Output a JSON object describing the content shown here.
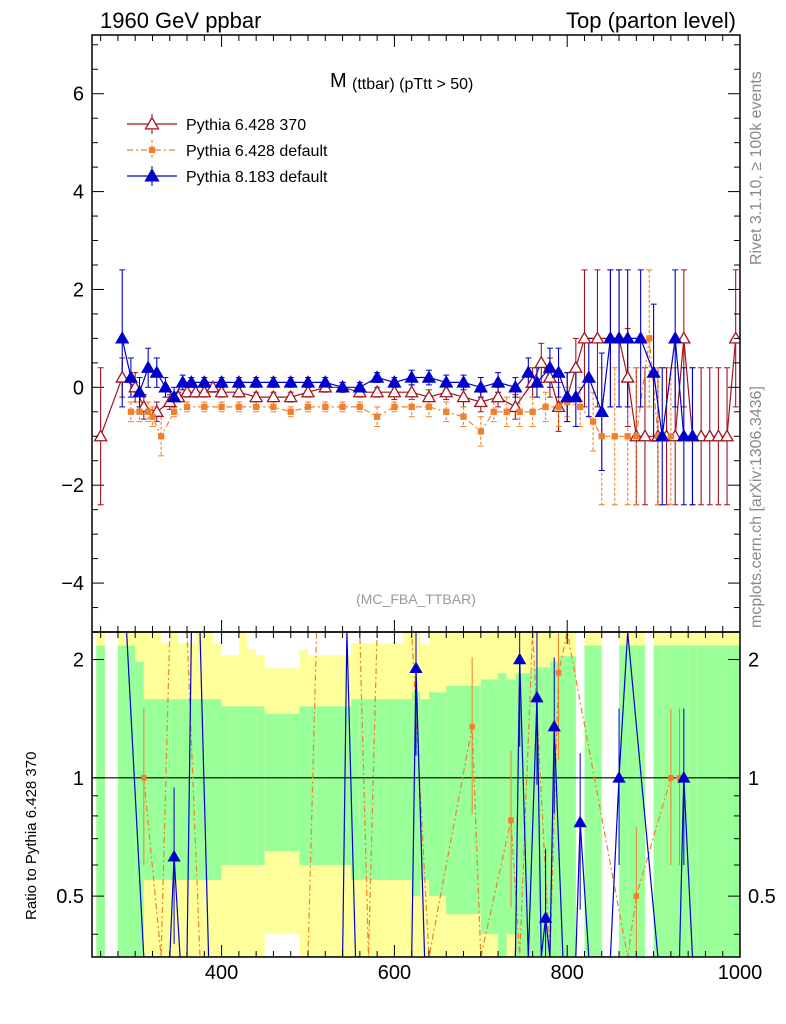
{
  "header": {
    "left": "1960 GeV ppbar",
    "right": "Top (parton level)"
  },
  "side_texts": {
    "rivet": "Rivet 3.1.10, ≥ 100k events",
    "mcplots": "mcplots.cern.ch [arXiv:1306.3436]"
  },
  "chart_data": {
    "type": "line",
    "title_main": "M",
    "title_sub": "(ttbar) (pTtt > 50)",
    "analysis_tag": "(MC_FBA_TTBAR)",
    "xlim": [
      250,
      1000
    ],
    "main_ylim": [
      -5,
      7.2
    ],
    "ratio_ylim": [
      0.35,
      2.35
    ],
    "ratio_ylabel": "Ratio to Pythia 6.428 370",
    "x_ticks": [
      400,
      600,
      800,
      1000
    ],
    "main_y_ticks": [
      -4,
      -2,
      0,
      2,
      4,
      6
    ],
    "main_y_tick_labels": [
      "−4",
      "−2",
      "0",
      "2",
      "4",
      "6"
    ],
    "ratio_y_ticks": [
      0.5,
      1,
      2
    ],
    "ratio_y_tick_labels": [
      "0.5",
      "1",
      "2"
    ],
    "legend": [
      "Pythia 6.428 370",
      "Pythia 6.428 default",
      "Pythia 8.183 default"
    ],
    "series": [
      {
        "name": "Pythia 6.428 370",
        "color": "#a0141e",
        "marker": "open-triangle",
        "dash": "",
        "x": [
          260,
          285,
          300,
          310,
          325,
          340,
          350,
          360,
          370,
          380,
          390,
          400,
          420,
          440,
          460,
          480,
          500,
          520,
          540,
          560,
          580,
          600,
          620,
          640,
          660,
          680,
          700,
          720,
          740,
          760,
          770,
          780,
          790,
          800,
          810,
          820,
          835,
          850,
          860,
          870,
          880,
          890,
          905,
          915,
          925,
          935,
          945,
          955,
          965,
          975,
          985,
          995
        ],
        "y": [
          -1.0,
          0.2,
          0.0,
          -0.4,
          -0.5,
          -0.3,
          -0.2,
          -0.1,
          -0.1,
          -0.1,
          0.0,
          -0.1,
          -0.1,
          -0.2,
          -0.2,
          -0.2,
          -0.1,
          0.0,
          0.0,
          -0.1,
          -0.1,
          -0.1,
          -0.1,
          -0.2,
          -0.1,
          -0.2,
          -0.3,
          -0.2,
          -0.4,
          0.1,
          0.5,
          0.2,
          -0.4,
          -0.2,
          0.4,
          1.0,
          1.0,
          1.0,
          1.0,
          0.2,
          -1.0,
          -1.0,
          -1.0,
          -1.0,
          -1.0,
          1.0,
          -1.0,
          -1.0,
          -1.0,
          -1.0,
          -1.0,
          1.0
        ],
        "err": [
          1.4,
          0.4,
          0.3,
          0.25,
          0.2,
          0.15,
          0.1,
          0.1,
          0.1,
          0.1,
          0.1,
          0.1,
          0.1,
          0.1,
          0.1,
          0.1,
          0.1,
          0.1,
          0.1,
          0.1,
          0.1,
          0.15,
          0.15,
          0.15,
          0.15,
          0.2,
          0.2,
          0.2,
          0.25,
          0.3,
          0.4,
          0.4,
          0.5,
          0.5,
          0.6,
          1.4,
          1.4,
          1.4,
          1.4,
          1.0,
          1.4,
          1.4,
          1.4,
          1.4,
          1.4,
          1.4,
          1.4,
          1.4,
          1.4,
          1.4,
          1.4,
          1.4
        ]
      },
      {
        "name": "Pythia 6.428 default",
        "color": "#f47f2a",
        "marker": "filled-square",
        "dash": "6,3,2,3",
        "x": [
          295,
          305,
          315,
          320,
          330,
          345,
          360,
          380,
          400,
          420,
          440,
          460,
          480,
          500,
          520,
          540,
          560,
          580,
          600,
          620,
          640,
          660,
          680,
          700,
          715,
          730,
          745,
          760,
          775,
          790,
          800,
          815,
          830,
          840,
          855,
          870,
          880,
          895,
          905,
          920
        ],
        "y": [
          -0.5,
          -0.5,
          -0.5,
          -0.6,
          -1.0,
          -0.5,
          -0.4,
          -0.4,
          -0.4,
          -0.4,
          -0.4,
          -0.4,
          -0.5,
          -0.4,
          -0.4,
          -0.4,
          -0.4,
          -0.6,
          -0.4,
          -0.4,
          -0.4,
          -0.5,
          -0.6,
          -0.9,
          -0.5,
          -0.5,
          -0.5,
          -0.5,
          -0.4,
          -0.4,
          -0.3,
          -0.4,
          -0.7,
          -1.0,
          -1.0,
          -1.0,
          -1.0,
          1.0,
          -1.0,
          -1.0
        ],
        "err": [
          0.2,
          0.2,
          0.2,
          0.2,
          0.4,
          0.1,
          0.1,
          0.1,
          0.1,
          0.1,
          0.1,
          0.1,
          0.1,
          0.1,
          0.1,
          0.1,
          0.1,
          0.2,
          0.1,
          0.2,
          0.2,
          0.2,
          0.2,
          0.3,
          0.2,
          0.3,
          0.3,
          0.3,
          0.3,
          0.4,
          0.3,
          0.4,
          0.6,
          1.4,
          1.4,
          1.4,
          1.4,
          1.4,
          1.4,
          1.4
        ]
      },
      {
        "name": "Pythia 8.183 default",
        "color": "#0000cc",
        "marker": "filled-triangle",
        "dash": "",
        "x": [
          285,
          295,
          305,
          315,
          325,
          335,
          345,
          355,
          365,
          380,
          400,
          420,
          440,
          460,
          480,
          500,
          520,
          540,
          560,
          580,
          600,
          620,
          640,
          660,
          680,
          700,
          720,
          740,
          755,
          765,
          780,
          790,
          800,
          810,
          825,
          840,
          850,
          860,
          870,
          885,
          900,
          910,
          925,
          935,
          945
        ],
        "y": [
          1.0,
          0.2,
          -0.1,
          0.4,
          0.3,
          0.0,
          -0.2,
          0.1,
          0.1,
          0.1,
          0.1,
          0.1,
          0.1,
          0.1,
          0.1,
          0.1,
          0.1,
          0.0,
          0.0,
          0.2,
          0.1,
          0.2,
          0.2,
          0.1,
          0.1,
          0.0,
          0.1,
          0.0,
          0.3,
          0.1,
          0.4,
          0.3,
          -0.2,
          -0.2,
          0.2,
          -0.5,
          1.0,
          1.0,
          1.0,
          1.0,
          0.3,
          -1.0,
          1.0,
          -1.0,
          -1.0
        ],
        "err": [
          1.4,
          0.4,
          0.3,
          0.4,
          0.3,
          0.2,
          0.2,
          0.15,
          0.1,
          0.1,
          0.1,
          0.1,
          0.1,
          0.1,
          0.1,
          0.1,
          0.1,
          0.1,
          0.1,
          0.1,
          0.1,
          0.15,
          0.15,
          0.15,
          0.15,
          0.2,
          0.2,
          0.2,
          0.3,
          0.3,
          0.4,
          0.5,
          0.5,
          0.6,
          0.8,
          1.2,
          1.4,
          1.4,
          1.4,
          1.4,
          1.4,
          1.4,
          1.4,
          1.4,
          1.4
        ]
      }
    ],
    "ratio_reference_band": {
      "x_edges": [
        255,
        265,
        280,
        290,
        300,
        310,
        320,
        330,
        340,
        350,
        360,
        370,
        380,
        390,
        400,
        410,
        420,
        430,
        440,
        450,
        460,
        470,
        480,
        490,
        500,
        510,
        520,
        530,
        540,
        550,
        560,
        570,
        580,
        590,
        600,
        610,
        620,
        630,
        640,
        650,
        660,
        670,
        680,
        690,
        700,
        710,
        720,
        730,
        740,
        750,
        760,
        770,
        780,
        790,
        800,
        810,
        820,
        830,
        840,
        850,
        860,
        870,
        880,
        890,
        900,
        910,
        920,
        930,
        940,
        950,
        960,
        970,
        980,
        990,
        1000
      ],
      "green_half_width": [
        0.9,
        0.0,
        0.9,
        0.9,
        0.75,
        0.45,
        0.45,
        0.45,
        0.45,
        0.45,
        0.45,
        0.45,
        0.45,
        0.45,
        0.4,
        0.4,
        0.4,
        0.4,
        0.4,
        0.35,
        0.35,
        0.35,
        0.35,
        0.4,
        0.4,
        0.4,
        0.4,
        0.4,
        0.4,
        0.45,
        0.45,
        0.45,
        0.45,
        0.45,
        0.45,
        0.45,
        0.5,
        0.45,
        0.5,
        0.5,
        0.55,
        0.55,
        0.55,
        0.55,
        0.6,
        0.6,
        0.65,
        0.6,
        0.65,
        0.65,
        0.7,
        0.7,
        0.75,
        0.8,
        0.8,
        0.0,
        0.9,
        0.9,
        0.0,
        0.0,
        0.9,
        0.9,
        0.9,
        0.0,
        0.9,
        0.9,
        0.9,
        0.9,
        0.9,
        0.9,
        0.9,
        0.9,
        0.9,
        0.9
      ],
      "yellow_half_width": [
        0.9,
        0.0,
        0.9,
        0.9,
        0.9,
        0.9,
        0.9,
        0.8,
        0.9,
        0.8,
        0.8,
        0.9,
        0.9,
        0.8,
        0.7,
        0.7,
        0.9,
        0.75,
        0.7,
        0.6,
        0.6,
        0.6,
        0.6,
        0.75,
        0.7,
        0.7,
        0.7,
        0.7,
        0.7,
        0.8,
        0.8,
        0.8,
        0.8,
        0.8,
        0.8,
        0.9,
        0.9,
        0.8,
        0.9,
        0.9,
        0.9,
        0.9,
        0.9,
        0.9,
        0.9,
        0.9,
        0.9,
        0.9,
        0.9,
        0.9,
        0.9,
        0.9,
        0.9,
        0.9,
        0.9,
        0.0,
        0.9,
        0.9,
        0.0,
        0.0,
        0.9,
        0.9,
        0.9,
        0.0,
        0.9,
        0.9,
        0.9,
        0.9,
        0.9,
        0.9,
        0.9,
        0.9,
        0.9,
        0.9
      ]
    },
    "ratio_series": [
      {
        "name": "Pythia 6.428 default",
        "color": "#f47f2a",
        "marker": "filled-square",
        "dash": "6,3,2,3",
        "points": [
          {
            "x": 310,
            "y": 1.0
          },
          {
            "x": 330,
            "y": 0.2
          },
          {
            "x": 340,
            "y": 3.0
          },
          {
            "x": 360,
            "y": 3.0
          },
          {
            "x": 375,
            "y": 0.2
          },
          {
            "x": 500,
            "y": 0.2
          },
          {
            "x": 510,
            "y": 3.0
          },
          {
            "x": 560,
            "y": 3.0
          },
          {
            "x": 570,
            "y": 0.2
          },
          {
            "x": 580,
            "y": 3.0
          },
          {
            "x": 620,
            "y": 3.0
          },
          {
            "x": 640,
            "y": 0.2
          },
          {
            "x": 690,
            "y": 1.35
          },
          {
            "x": 700,
            "y": 0.2
          },
          {
            "x": 735,
            "y": 0.78
          },
          {
            "x": 745,
            "y": 0.2
          },
          {
            "x": 760,
            "y": 3.0
          },
          {
            "x": 780,
            "y": 0.2
          },
          {
            "x": 790,
            "y": 1.85
          },
          {
            "x": 800,
            "y": 3.0
          },
          {
            "x": 870,
            "y": 0.2
          },
          {
            "x": 880,
            "y": 0.5
          },
          {
            "x": 920,
            "y": 1.0
          },
          {
            "x": 930,
            "y": 1.0
          }
        ]
      },
      {
        "name": "Pythia 8.183 default",
        "color": "#0000cc",
        "marker": "filled-triangle",
        "dash": "",
        "points": [
          {
            "x": 290,
            "y": 3.0
          },
          {
            "x": 310,
            "y": 0.2
          },
          {
            "x": 340,
            "y": 0.2
          },
          {
            "x": 345,
            "y": 0.63
          },
          {
            "x": 352,
            "y": 0.2
          },
          {
            "x": 360,
            "y": 0.2
          },
          {
            "x": 365,
            "y": 3.0
          },
          {
            "x": 375,
            "y": 3.0
          },
          {
            "x": 385,
            "y": 0.2
          },
          {
            "x": 540,
            "y": 0.2
          },
          {
            "x": 545,
            "y": 2.4
          },
          {
            "x": 555,
            "y": 0.2
          },
          {
            "x": 620,
            "y": 0.2
          },
          {
            "x": 625,
            "y": 1.9
          },
          {
            "x": 635,
            "y": 0.2
          },
          {
            "x": 740,
            "y": 0.2
          },
          {
            "x": 745,
            "y": 2.0
          },
          {
            "x": 755,
            "y": 0.2
          },
          {
            "x": 765,
            "y": 1.6
          },
          {
            "x": 770,
            "y": 0.2
          },
          {
            "x": 775,
            "y": 0.44
          },
          {
            "x": 780,
            "y": 0.2
          },
          {
            "x": 785,
            "y": 1.35
          },
          {
            "x": 795,
            "y": 0.2
          },
          {
            "x": 810,
            "y": 0.2
          },
          {
            "x": 815,
            "y": 0.77
          },
          {
            "x": 825,
            "y": 0.2
          },
          {
            "x": 840,
            "y": 0.2
          },
          {
            "x": 850,
            "y": 0.2
          },
          {
            "x": 860,
            "y": 1.0
          },
          {
            "x": 870,
            "y": 3.0
          },
          {
            "x": 905,
            "y": 0.2
          },
          {
            "x": 930,
            "y": 0.2
          },
          {
            "x": 935,
            "y": 1.0
          },
          {
            "x": 945,
            "y": 0.2
          }
        ]
      }
    ]
  }
}
